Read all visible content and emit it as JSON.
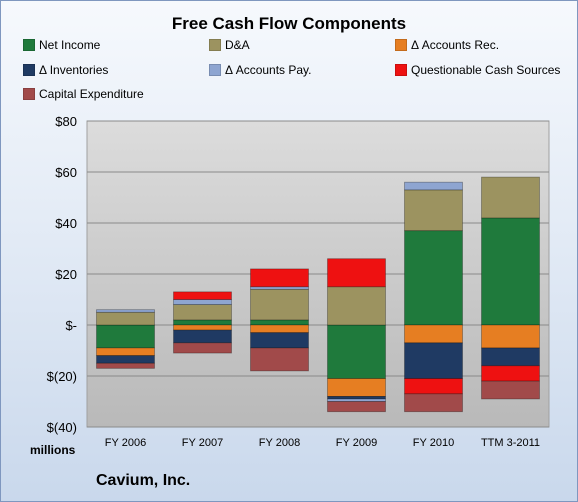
{
  "chart_data": {
    "type": "bar",
    "stacked": true,
    "title": "Free Cash Flow Components",
    "units_label": "millions",
    "company": "Cavium, Inc.",
    "categories": [
      "FY 2006",
      "FY 2007",
      "FY 2008",
      "FY 2009",
      "FY 2010",
      "TTM 3-2011"
    ],
    "ylim": [
      -40,
      80
    ],
    "yticks": [
      80,
      60,
      40,
      20,
      0,
      -20,
      -40
    ],
    "ytick_labels": [
      "$80",
      "$60",
      "$40",
      "$20",
      "$-",
      "$(20)",
      "$(40)"
    ],
    "grid": true,
    "legend_position": "top",
    "series": [
      {
        "name": "Net Income",
        "color": "#1f7a3c",
        "values": [
          -9,
          2,
          2,
          -21,
          37,
          42
        ]
      },
      {
        "name": "D&A",
        "color": "#9c9360",
        "values": [
          5,
          6,
          12,
          15,
          16,
          16
        ]
      },
      {
        "name": "Δ Accounts Rec.",
        "color": "#e67e22",
        "values": [
          -3,
          -2,
          -3,
          -7,
          -7,
          -9
        ]
      },
      {
        "name": "Δ Inventories",
        "color": "#1f3a63",
        "values": [
          -3,
          -5,
          -6,
          -1,
          -14,
          -7
        ]
      },
      {
        "name": "Δ Accounts Pay.",
        "color": "#8ea5d1",
        "values": [
          1,
          2,
          1,
          -1,
          3,
          0
        ]
      },
      {
        "name": "Questionable Cash Sources",
        "color": "#ee1111",
        "values": [
          0,
          3,
          7,
          11,
          -6,
          -6
        ]
      },
      {
        "name": "Capital Expenditure",
        "color": "#a14a4a",
        "values": [
          -2,
          -4,
          -9,
          -4,
          -7,
          -7
        ]
      }
    ]
  }
}
